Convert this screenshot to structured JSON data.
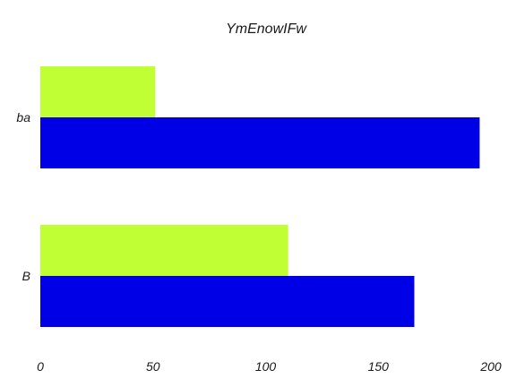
{
  "chart_data": {
    "type": "bar",
    "orientation": "horizontal",
    "title": "YmEnowIFw",
    "categories": [
      "ba",
      "B"
    ],
    "series": [
      {
        "values": [
          51,
          110
        ],
        "color": "#c0ff33"
      },
      {
        "values": [
          195,
          166
        ],
        "color": "#0000e6"
      }
    ],
    "xlim": [
      0,
      200
    ],
    "xticks": [
      0,
      50,
      100,
      150,
      200
    ],
    "xlabel": "",
    "ylabel": "",
    "grid": false,
    "legend": "none"
  }
}
